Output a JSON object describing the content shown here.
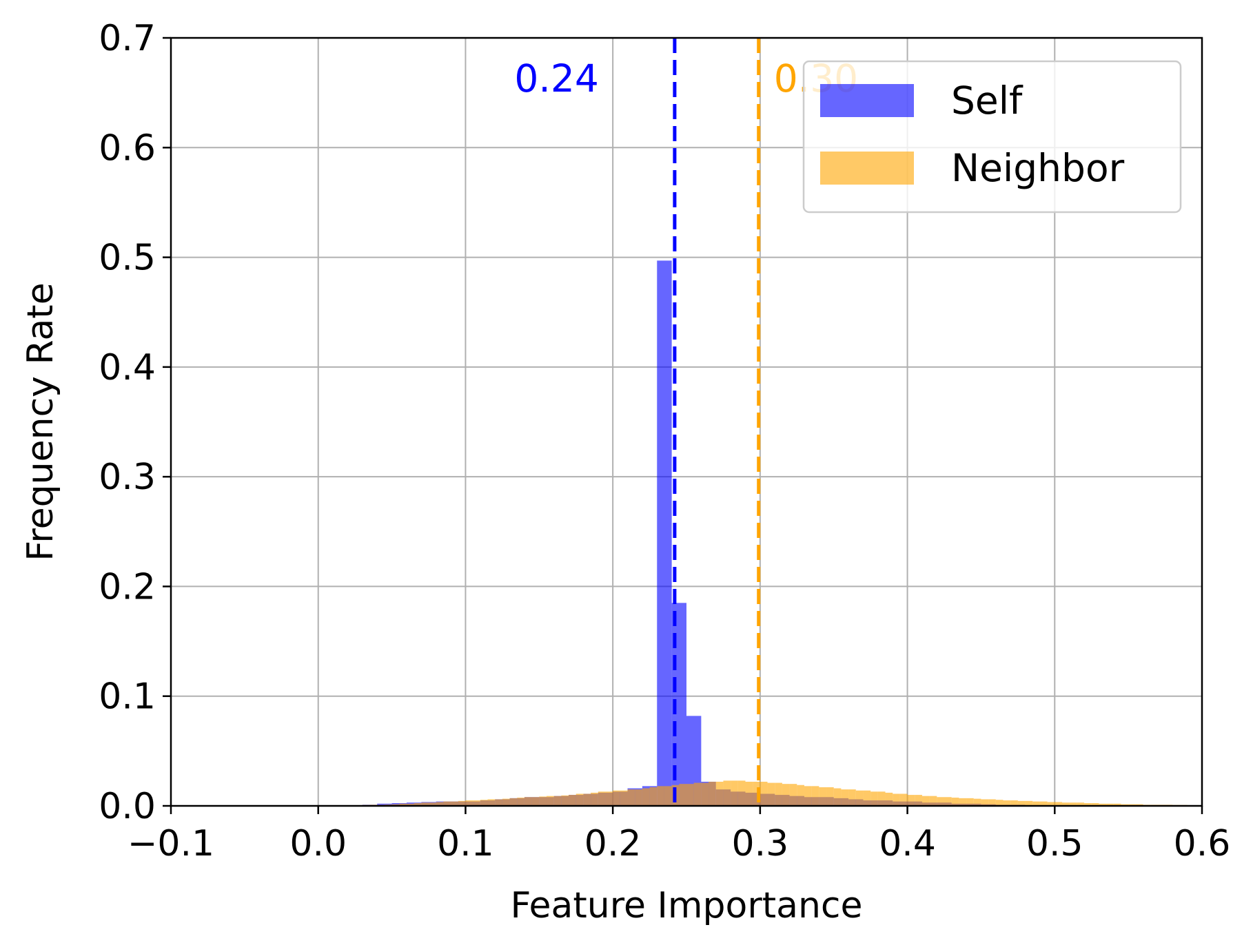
{
  "chart_data": {
    "type": "histogram",
    "xlabel": "Feature Importance",
    "ylabel": "Frequency Rate",
    "xlim": [
      -0.1,
      0.6
    ],
    "ylim": [
      0,
      0.7
    ],
    "xticks": [
      "−0.1",
      "0.0",
      "0.1",
      "0.2",
      "0.3",
      "0.4",
      "0.5",
      "0.6"
    ],
    "xtick_values": [
      -0.1,
      0.0,
      0.1,
      0.2,
      0.3,
      0.4,
      0.5,
      0.6
    ],
    "yticks": [
      "0.0",
      "0.1",
      "0.2",
      "0.3",
      "0.4",
      "0.5",
      "0.6",
      "0.7"
    ],
    "ytick_values": [
      0.0,
      0.1,
      0.2,
      0.3,
      0.4,
      0.5,
      0.6,
      0.7
    ],
    "grid": true,
    "legend_position": "top-right",
    "series": [
      {
        "name": "Self",
        "color": "#0000ff",
        "opacity": 0.6,
        "bin_width": 0.01,
        "bins_start": [
          0.0,
          0.01,
          0.02,
          0.03,
          0.04,
          0.05,
          0.06,
          0.07,
          0.08,
          0.09,
          0.1,
          0.11,
          0.12,
          0.13,
          0.14,
          0.15,
          0.16,
          0.17,
          0.18,
          0.19,
          0.2,
          0.21,
          0.22,
          0.23,
          0.24,
          0.25,
          0.26,
          0.27,
          0.28,
          0.29,
          0.3,
          0.31,
          0.32,
          0.33,
          0.34,
          0.35,
          0.36,
          0.37,
          0.38,
          0.39,
          0.4,
          0.41,
          0.42,
          0.43,
          0.44,
          0.45,
          0.46,
          0.47,
          0.48,
          0.49,
          0.5
        ],
        "values": [
          0.0,
          0.0,
          0.0005,
          0.001,
          0.002,
          0.0025,
          0.003,
          0.0035,
          0.004,
          0.004,
          0.004,
          0.005,
          0.006,
          0.007,
          0.008,
          0.008,
          0.009,
          0.01,
          0.011,
          0.012,
          0.013,
          0.016,
          0.018,
          0.497,
          0.185,
          0.082,
          0.022,
          0.015,
          0.013,
          0.012,
          0.011,
          0.01,
          0.009,
          0.008,
          0.008,
          0.007,
          0.006,
          0.005,
          0.005,
          0.004,
          0.004,
          0.003,
          0.003,
          0.002,
          0.002,
          0.0015,
          0.001,
          0.001,
          0.0005,
          0.0005,
          0.0
        ]
      },
      {
        "name": "Neighbor",
        "color": "#ffa500",
        "opacity": 0.6,
        "bin_width": 0.005,
        "bins_start": [
          0.02,
          0.025,
          0.03,
          0.035,
          0.04,
          0.045,
          0.05,
          0.055,
          0.06,
          0.065,
          0.07,
          0.075,
          0.08,
          0.085,
          0.09,
          0.095,
          0.1,
          0.105,
          0.11,
          0.115,
          0.12,
          0.125,
          0.13,
          0.135,
          0.14,
          0.145,
          0.15,
          0.155,
          0.16,
          0.165,
          0.17,
          0.175,
          0.18,
          0.185,
          0.19,
          0.195,
          0.2,
          0.205,
          0.21,
          0.215,
          0.22,
          0.225,
          0.23,
          0.235,
          0.24,
          0.245,
          0.25,
          0.255,
          0.26,
          0.265,
          0.27,
          0.275,
          0.28,
          0.285,
          0.29,
          0.295,
          0.3,
          0.305,
          0.31,
          0.315,
          0.32,
          0.325,
          0.33,
          0.335,
          0.34,
          0.345,
          0.35,
          0.355,
          0.36,
          0.365,
          0.37,
          0.375,
          0.38,
          0.385,
          0.39,
          0.395,
          0.4,
          0.405,
          0.41,
          0.415,
          0.42,
          0.425,
          0.43,
          0.435,
          0.44,
          0.445,
          0.45,
          0.455,
          0.46,
          0.465,
          0.47,
          0.475,
          0.48,
          0.485,
          0.49,
          0.495,
          0.5,
          0.505,
          0.51,
          0.515,
          0.52,
          0.525,
          0.53,
          0.535,
          0.54,
          0.545,
          0.55,
          0.555,
          0.56,
          0.565,
          0.57,
          0.575,
          0.58,
          0.585,
          0.59
        ],
        "values": [
          0.0005,
          0.0005,
          0.0008,
          0.001,
          0.001,
          0.0012,
          0.0015,
          0.002,
          0.002,
          0.0025,
          0.003,
          0.003,
          0.0035,
          0.004,
          0.004,
          0.0045,
          0.005,
          0.005,
          0.0055,
          0.006,
          0.006,
          0.0065,
          0.007,
          0.0075,
          0.008,
          0.008,
          0.0085,
          0.009,
          0.009,
          0.0095,
          0.01,
          0.011,
          0.011,
          0.012,
          0.013,
          0.013,
          0.014,
          0.014,
          0.015,
          0.015,
          0.016,
          0.017,
          0.018,
          0.018,
          0.019,
          0.02,
          0.02,
          0.021,
          0.021,
          0.022,
          0.022,
          0.023,
          0.023,
          0.023,
          0.022,
          0.022,
          0.022,
          0.021,
          0.021,
          0.02,
          0.02,
          0.019,
          0.018,
          0.018,
          0.017,
          0.017,
          0.016,
          0.015,
          0.015,
          0.014,
          0.014,
          0.013,
          0.013,
          0.012,
          0.011,
          0.011,
          0.01,
          0.01,
          0.009,
          0.009,
          0.008,
          0.008,
          0.0075,
          0.007,
          0.007,
          0.0065,
          0.006,
          0.006,
          0.0055,
          0.005,
          0.005,
          0.0045,
          0.0045,
          0.004,
          0.004,
          0.0035,
          0.0035,
          0.003,
          0.003,
          0.003,
          0.0025,
          0.0025,
          0.002,
          0.002,
          0.002,
          0.0015,
          0.0015,
          0.0015,
          0.001,
          0.001,
          0.001,
          0.001,
          0.0008,
          0.0008,
          0.0005
        ]
      }
    ],
    "vlines": [
      {
        "x": 0.242,
        "color": "#0000ff",
        "style": "dashed",
        "label": "0.24"
      },
      {
        "x": 0.299,
        "color": "#ffa500",
        "style": "dashed",
        "label": "0.30"
      }
    ]
  }
}
